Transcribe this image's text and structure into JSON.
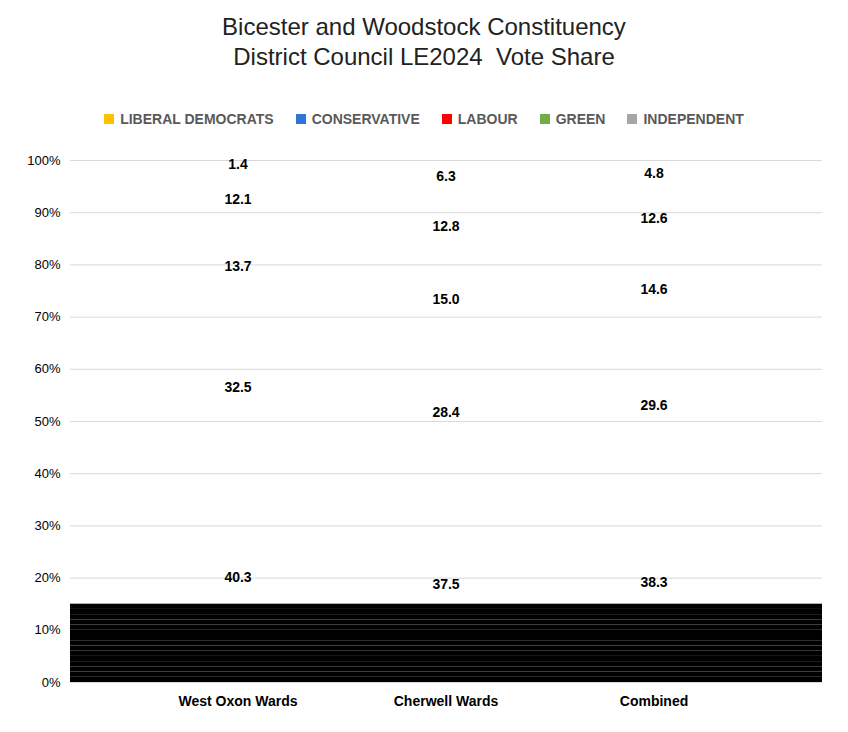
{
  "chart_data": {
    "type": "bar",
    "title": "Bicester and Woodstock Constituency",
    "subtitle": "District Council LE2024  Vote Share",
    "stacked": true,
    "data_labels": true,
    "legend": "top",
    "grid": true,
    "categories": [
      "West Oxon Wards",
      "Cherwell Wards",
      "Combined"
    ],
    "series": [
      {
        "name": "LIBERAL DEMOCRATS",
        "color": "#FFC000",
        "values": [
          40.3,
          37.5,
          38.3
        ]
      },
      {
        "name": "CONSERVATIVE",
        "color": "#2E75D6",
        "values": [
          32.5,
          28.4,
          29.6
        ]
      },
      {
        "name": "LABOUR",
        "color": "#FF0000",
        "values": [
          13.7,
          15.0,
          14.6
        ],
        "value_labels": [
          "13.7",
          "15.0",
          "14.6"
        ]
      },
      {
        "name": "GREEN",
        "color": "#70AD47",
        "values": [
          12.1,
          12.8,
          12.6
        ]
      },
      {
        "name": "INDEPENDENT",
        "color": "#A6A6A6",
        "values": [
          1.4,
          6.3,
          4.8
        ]
      }
    ],
    "ylim": [
      0,
      100
    ],
    "yticks": [
      {
        "value": 0,
        "label": "0%"
      },
      {
        "value": 10,
        "label": "10%"
      },
      {
        "value": 20,
        "label": "20%"
      },
      {
        "value": 30,
        "label": "30%"
      },
      {
        "value": 40,
        "label": "40%"
      },
      {
        "value": 50,
        "label": "50%"
      },
      {
        "value": 60,
        "label": "60%"
      },
      {
        "value": 70,
        "label": "70%"
      },
      {
        "value": 80,
        "label": "80%"
      },
      {
        "value": 90,
        "label": "90%"
      },
      {
        "value": 100,
        "label": "100%"
      }
    ]
  }
}
